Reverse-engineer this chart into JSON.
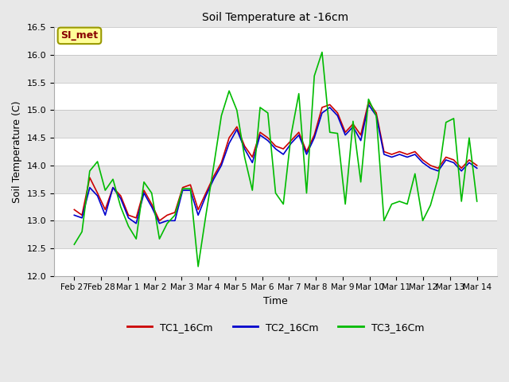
{
  "title": "Soil Temperature at -16cm",
  "xlabel": "Time",
  "ylabel": "Soil Temperature (C)",
  "ylim": [
    12.0,
    16.5
  ],
  "fig_bg_color": "#e8e8e8",
  "plot_bg_color": "#ffffff",
  "band_color_light": "#e8e8e8",
  "band_color_dark": "#d8d8d8",
  "annotation_text": "SI_met",
  "annotation_bg": "#ffff99",
  "annotation_border": "#999900",
  "annotation_text_color": "#880000",
  "x_tick_labels": [
    "Feb 27",
    "Feb 28",
    "Mar 1",
    "Mar 2",
    "Mar 3",
    "Mar 4",
    "Mar 5",
    "Mar 6",
    "Mar 7",
    "Mar 8",
    "Mar 9",
    "Mar 10",
    "Mar 11",
    "Mar 12",
    "Mar 13",
    "Mar 14"
  ],
  "series": {
    "TC1_16Cm": {
      "color": "#cc0000",
      "linewidth": 1.2,
      "values": [
        13.2,
        13.1,
        13.78,
        13.5,
        13.2,
        13.6,
        13.45,
        13.1,
        13.05,
        13.55,
        13.3,
        13.0,
        13.1,
        13.15,
        13.6,
        13.65,
        13.2,
        13.5,
        13.8,
        14.05,
        14.5,
        14.7,
        14.35,
        14.15,
        14.6,
        14.5,
        14.35,
        14.3,
        14.45,
        14.6,
        14.25,
        14.55,
        15.05,
        15.1,
        14.95,
        14.6,
        14.75,
        14.55,
        15.15,
        14.95,
        14.25,
        14.2,
        14.25,
        14.2,
        14.25,
        14.1,
        14.0,
        13.95,
        14.15,
        14.1,
        13.95,
        14.1,
        14.0
      ]
    },
    "TC2_16Cm": {
      "color": "#0000cc",
      "linewidth": 1.2,
      "values": [
        13.1,
        13.05,
        13.6,
        13.45,
        13.1,
        13.6,
        13.4,
        13.05,
        12.95,
        13.5,
        13.25,
        12.95,
        13.0,
        13.0,
        13.55,
        13.55,
        13.1,
        13.45,
        13.75,
        14.0,
        14.4,
        14.65,
        14.3,
        14.05,
        14.55,
        14.45,
        14.3,
        14.2,
        14.4,
        14.55,
        14.2,
        14.5,
        14.95,
        15.05,
        14.9,
        14.55,
        14.7,
        14.45,
        15.1,
        14.9,
        14.2,
        14.15,
        14.2,
        14.15,
        14.2,
        14.05,
        13.95,
        13.9,
        14.1,
        14.05,
        13.9,
        14.05,
        13.95
      ]
    },
    "TC3_16Cm": {
      "color": "#00bb00",
      "linewidth": 1.2,
      "values": [
        12.57,
        12.8,
        13.9,
        14.07,
        13.55,
        13.75,
        13.25,
        12.9,
        12.67,
        13.7,
        13.5,
        12.67,
        12.95,
        13.1,
        13.58,
        13.58,
        12.17,
        13.1,
        13.98,
        14.9,
        15.35,
        15.0,
        14.15,
        13.55,
        15.05,
        14.95,
        13.5,
        13.3,
        14.55,
        15.3,
        13.5,
        15.62,
        16.05,
        14.6,
        14.58,
        13.3,
        14.8,
        13.7,
        15.2,
        14.9,
        13.0,
        13.3,
        13.35,
        13.3,
        13.85,
        13.0,
        13.28,
        13.78,
        14.78,
        14.85,
        13.35,
        14.5,
        13.35
      ]
    }
  },
  "legend_labels": [
    "TC1_16Cm",
    "TC2_16Cm",
    "TC3_16Cm"
  ],
  "legend_colors": [
    "#cc0000",
    "#0000cc",
    "#00bb00"
  ],
  "yticks": [
    12.0,
    12.5,
    13.0,
    13.5,
    14.0,
    14.5,
    15.0,
    15.5,
    16.0,
    16.5
  ]
}
